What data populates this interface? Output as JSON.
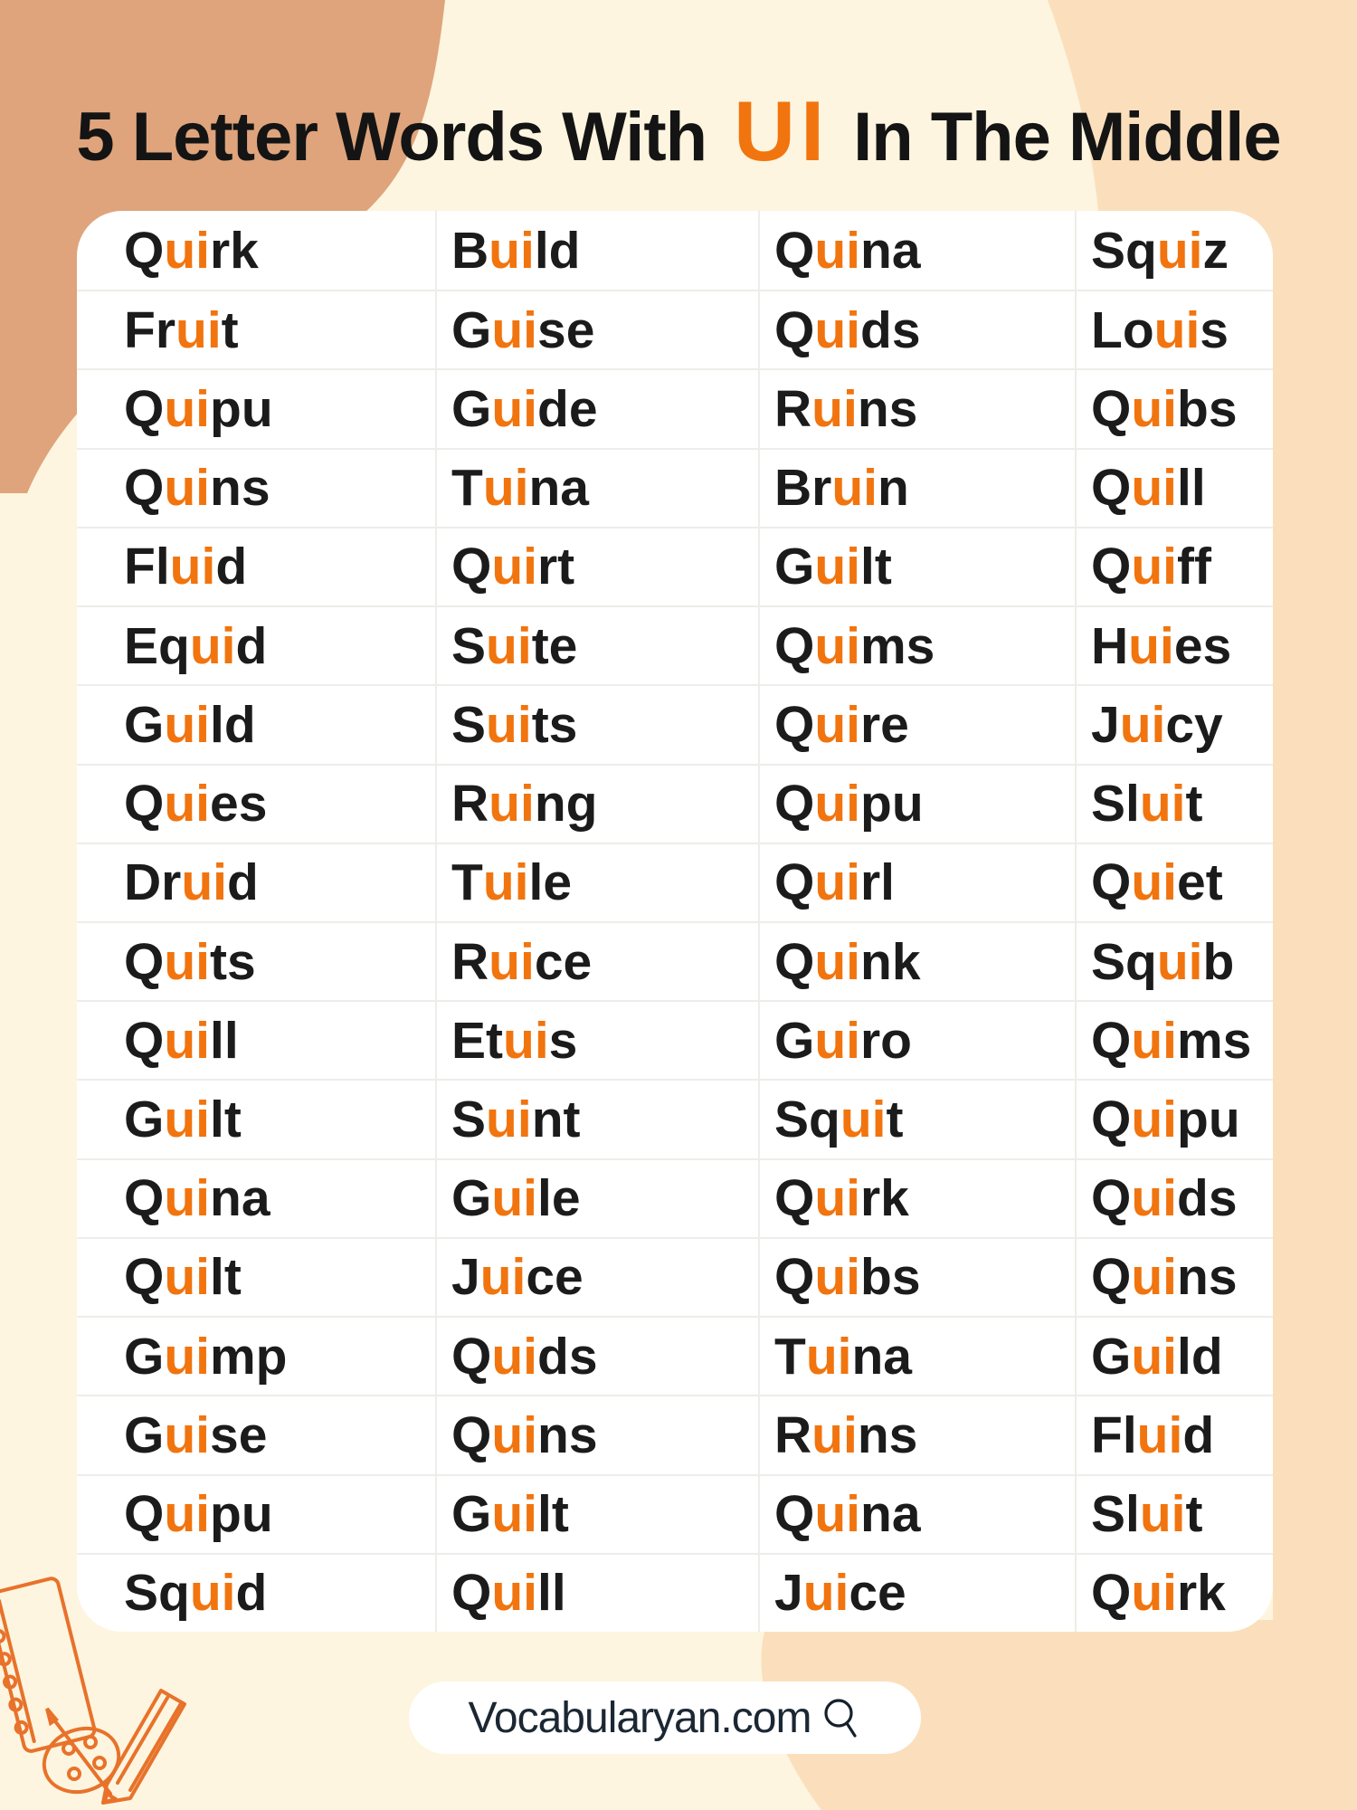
{
  "title": {
    "prefix": "5 Letter Words With",
    "highlight": "UI",
    "suffix": "In The Middle"
  },
  "highlight_rule": "ui",
  "grid": {
    "rows": [
      [
        "Quirk",
        "Build",
        "Quina",
        "Squiz"
      ],
      [
        "Fruit",
        "Guise",
        "Quids",
        "Louis"
      ],
      [
        "Quipu",
        "Guide",
        "Ruins",
        "Quibs"
      ],
      [
        "Quins",
        "Tuina",
        "Bruin",
        "Quill"
      ],
      [
        "Fluid",
        "Quirt",
        "Guilt",
        "Quiff"
      ],
      [
        "Equid",
        "Suite",
        "Quims",
        "Huies"
      ],
      [
        "Guild",
        "Suits",
        "Quire",
        "Juicy"
      ],
      [
        "Quies",
        "Ruing",
        "Quipu",
        "Sluit"
      ],
      [
        "Druid",
        "Tuile",
        "Quirl",
        "Quiet"
      ],
      [
        "Quits",
        "Ruice",
        "Quink",
        "Squib"
      ],
      [
        "Quill",
        "Etuis",
        "Guiro",
        "Quims"
      ],
      [
        "Guilt",
        "Suint",
        "Squit",
        "Quipu"
      ],
      [
        "Quina",
        "Guile",
        "Quirk",
        "Quids"
      ],
      [
        "Quilt",
        "Juice",
        "Quibs",
        "Quins"
      ],
      [
        "Guimp",
        "Quids",
        "Tuina",
        "Guild"
      ],
      [
        "Guise",
        "Quins",
        "Ruins",
        "Fluid"
      ],
      [
        "Quipu",
        "Guilt",
        "Quina",
        "Sluit"
      ],
      [
        "Squid",
        "Quill",
        "Juice",
        "Quirk"
      ]
    ]
  },
  "footer": {
    "site": "Vocabularyan.com",
    "icon": "magnifier-icon"
  },
  "decorations": [
    "notebook-icon",
    "palette-icon",
    "pencil-icon"
  ],
  "colors": {
    "accent_orange": "#F1740E",
    "text_black": "#1B1B1B",
    "card_white": "#FFFFFF",
    "background_cream": "#FDF5DF",
    "blob_tan": "#DFA47C",
    "blob_peach": "#FBDFBC",
    "separator": "#EDEDE9",
    "footer_text": "#1B2733",
    "doodle_orange": "#E8722B"
  }
}
